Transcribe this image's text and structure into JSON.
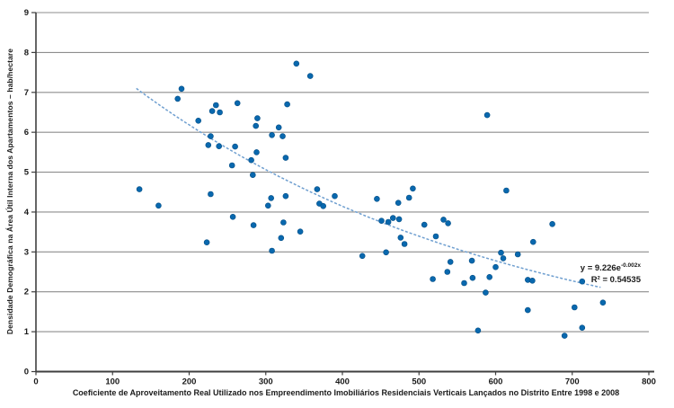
{
  "chart_data": {
    "type": "scatter",
    "title": "",
    "xlabel": "Coeficiente de Aproveitamento Real Utilizado nos Empreendimento Imobiliários Residenciais Verticais Lançados no Distrito Entre 1998 e 2008",
    "ylabel": "Densidade Demográfica na Área Útil Interna dos Apartamentos – hab/hectare",
    "xlim": [
      0,
      800
    ],
    "ylim": [
      0,
      9
    ],
    "x_ticks": [
      0,
      100,
      200,
      300,
      400,
      500,
      600,
      700,
      800
    ],
    "y_ticks": [
      0,
      1,
      2,
      3,
      4,
      5,
      6,
      7,
      8,
      9
    ],
    "grid": true,
    "legend": "none",
    "points": [
      [
        135,
        4.57
      ],
      [
        160,
        4.16
      ],
      [
        185,
        6.84
      ],
      [
        190,
        7.09
      ],
      [
        212,
        6.29
      ],
      [
        223,
        3.24
      ],
      [
        225,
        5.68
      ],
      [
        228,
        5.9
      ],
      [
        228,
        4.45
      ],
      [
        230,
        6.53
      ],
      [
        235,
        6.68
      ],
      [
        239,
        5.65
      ],
      [
        240,
        6.5
      ],
      [
        256,
        5.17
      ],
      [
        257,
        3.88
      ],
      [
        260,
        5.64
      ],
      [
        263,
        6.73
      ],
      [
        281,
        5.3
      ],
      [
        283,
        4.93
      ],
      [
        284,
        3.67
      ],
      [
        287,
        6.16
      ],
      [
        288,
        5.5
      ],
      [
        289,
        6.35
      ],
      [
        303,
        4.16
      ],
      [
        307,
        4.35
      ],
      [
        308,
        5.93
      ],
      [
        308,
        3.03
      ],
      [
        317,
        6.12
      ],
      [
        320,
        3.35
      ],
      [
        322,
        5.9
      ],
      [
        323,
        3.74
      ],
      [
        326,
        5.36
      ],
      [
        326,
        4.4
      ],
      [
        328,
        6.7
      ],
      [
        340,
        7.72
      ],
      [
        345,
        3.51
      ],
      [
        358,
        7.41
      ],
      [
        367,
        4.57
      ],
      [
        370,
        4.21
      ],
      [
        375,
        4.15
      ],
      [
        390,
        4.4
      ],
      [
        426,
        2.9
      ],
      [
        445,
        4.33
      ],
      [
        451,
        3.78
      ],
      [
        457,
        2.99
      ],
      [
        460,
        3.75
      ],
      [
        466,
        3.85
      ],
      [
        473,
        4.23
      ],
      [
        474,
        3.82
      ],
      [
        476,
        3.36
      ],
      [
        481,
        3.2
      ],
      [
        487,
        4.36
      ],
      [
        492,
        4.59
      ],
      [
        507,
        3.68
      ],
      [
        518,
        2.32
      ],
      [
        522,
        3.39
      ],
      [
        532,
        3.81
      ],
      [
        538,
        3.72
      ],
      [
        537,
        2.5
      ],
      [
        541,
        2.75
      ],
      [
        559,
        2.22
      ],
      [
        569,
        2.78
      ],
      [
        570,
        2.35
      ],
      [
        577,
        1.03
      ],
      [
        587,
        1.98
      ],
      [
        589,
        6.43
      ],
      [
        592,
        2.37
      ],
      [
        600,
        2.62
      ],
      [
        607,
        2.98
      ],
      [
        610,
        2.84
      ],
      [
        614,
        4.54
      ],
      [
        629,
        2.94
      ],
      [
        642,
        2.3
      ],
      [
        648,
        2.28
      ],
      [
        642,
        1.54
      ],
      [
        649,
        3.25
      ],
      [
        674,
        3.7
      ],
      [
        690,
        0.9
      ],
      [
        703,
        1.61
      ],
      [
        713,
        2.26
      ],
      [
        713,
        1.1
      ],
      [
        740,
        1.73
      ]
    ],
    "trendline": {
      "type": "exponential",
      "a": 9.226,
      "b": -0.002,
      "x_start": 131,
      "x_end": 737,
      "equation_base": "y = 9.226e",
      "equation_exponent": "-0.002x",
      "r_squared_label": "R² = 0.54535"
    },
    "colors": {
      "point": "#0968ae",
      "point_edge": "#064f86",
      "trendline": "#6f9fd0",
      "gridline": "#8d8d8d",
      "axis": "#3f3f3f",
      "text": "#1a1a1a"
    }
  }
}
